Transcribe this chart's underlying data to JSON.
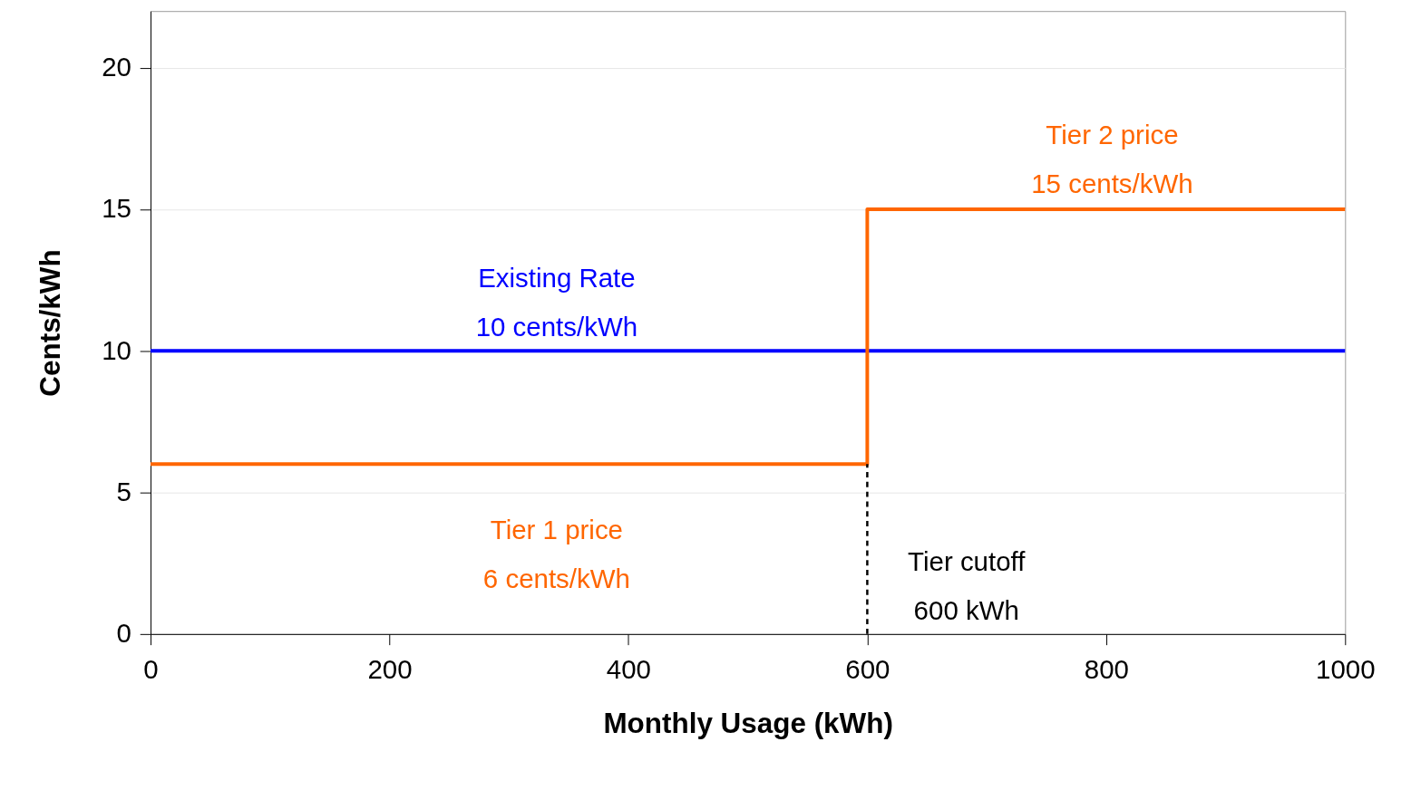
{
  "chart_data": {
    "type": "line",
    "xlabel": "Monthly Usage (kWh)",
    "ylabel": "Cents/kWh",
    "xlim": [
      0,
      1000
    ],
    "xticks": [
      0,
      200,
      400,
      600,
      800,
      1000
    ],
    "ylim": [
      0,
      22
    ],
    "yticks": [
      0,
      5,
      10,
      15,
      20
    ],
    "grid": "y",
    "legend": false,
    "series": [
      {
        "color": "#0000ff",
        "x": [
          0,
          1000
        ],
        "values": [
          10,
          10
        ]
      },
      {
        "type": "step",
        "color": "#ff6600",
        "x": [
          0,
          600,
          1000
        ],
        "values": [
          6,
          15,
          15
        ]
      },
      {
        "color": "#000000",
        "line_style": "dashed",
        "x": [
          600,
          600
        ],
        "values": [
          0,
          6
        ]
      }
    ],
    "annotations": [
      "Existing Rate\n10 cents/kWh",
      "Tier 2 price\n15 cents/kWh",
      "Tier 1 price\n6 cents/kWh",
      "Tier cutoff\n 600 kWh"
    ]
  }
}
